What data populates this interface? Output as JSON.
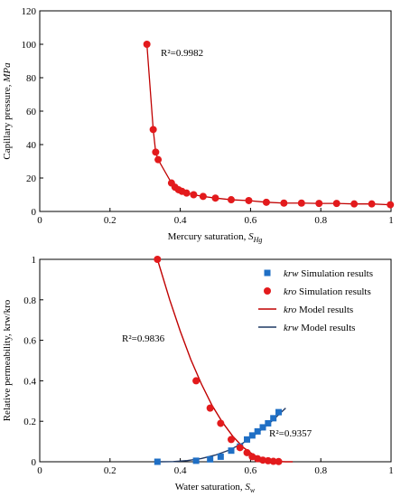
{
  "chart_data": [
    {
      "type": "scatter",
      "xlabel": "Mercury saturation, ",
      "xlabel_sym": "S",
      "xlabel_sub": "Hg",
      "ylabel": "Capillary pressure, ",
      "ylabel_unit": "MPa",
      "xlim": [
        0,
        1
      ],
      "ylim": [
        0,
        120
      ],
      "xticks": [
        "0",
        "0.2",
        "0.4",
        "0.6",
        "0.8",
        "1"
      ],
      "yticks": [
        "0",
        "20",
        "40",
        "60",
        "80",
        "100",
        "120"
      ],
      "xtick_values": [
        0,
        0.2,
        0.4,
        0.6,
        0.8,
        1
      ],
      "ytick_values": [
        0,
        20,
        40,
        60,
        80,
        100,
        120
      ],
      "annotation": "R²=0.9982",
      "marker_color": "#e31a1c",
      "line_color": "#c00000",
      "points": {
        "x": [
          0.305,
          0.323,
          0.33,
          0.337,
          0.375,
          0.385,
          0.395,
          0.405,
          0.418,
          0.438,
          0.465,
          0.5,
          0.545,
          0.595,
          0.645,
          0.695,
          0.745,
          0.795,
          0.845,
          0.895,
          0.945,
          0.998
        ],
        "y": [
          100,
          49,
          35.5,
          31,
          17,
          14.5,
          13,
          12,
          11,
          10,
          9,
          8,
          7,
          6.5,
          5.5,
          5,
          5,
          4.8,
          4.8,
          4.5,
          4.5,
          4
        ]
      }
    },
    {
      "type": "scatter",
      "xlabel": "Water saturation, ",
      "xlabel_sym": "S",
      "xlabel_sub": "w",
      "ylabel": "Relative permeability, krw/kro",
      "xlim": [
        0,
        1
      ],
      "ylim": [
        0,
        1
      ],
      "xticks": [
        "0",
        "0.2",
        "0.4",
        "0.6",
        "0.8",
        "1"
      ],
      "yticks": [
        "0",
        "0.2",
        "0.4",
        "0.6",
        "0.8",
        "1"
      ],
      "xtick_values": [
        0,
        0.2,
        0.4,
        0.6,
        0.8,
        1
      ],
      "ytick_values": [
        0,
        0.2,
        0.4,
        0.6,
        0.8,
        1
      ],
      "annotations": [
        "R²=0.9836",
        "R²=0.9357"
      ],
      "legend_placement": "top-right",
      "legend": [
        {
          "italic": "krw",
          "text": " Simulation results",
          "kind": "square",
          "color": "#1f6fc5"
        },
        {
          "italic": "kro",
          "text": " Simulation results",
          "kind": "circle",
          "color": "#e31a1c"
        },
        {
          "italic": "kro",
          "text": " Model results",
          "kind": "line",
          "color": "#c00000"
        },
        {
          "italic": "krw",
          "text": " Model results",
          "kind": "line",
          "color": "#1f3864"
        }
      ],
      "series": [
        {
          "name": "krw Simulation results",
          "marker": "square",
          "color": "#1f6fc5",
          "x": [
            0.335,
            0.445,
            0.485,
            0.515,
            0.545,
            0.57,
            0.59,
            0.605,
            0.62,
            0.635,
            0.65,
            0.665,
            0.68
          ],
          "y": [
            0,
            0.005,
            0.012,
            0.025,
            0.055,
            0.075,
            0.11,
            0.13,
            0.15,
            0.17,
            0.19,
            0.215,
            0.245
          ]
        },
        {
          "name": "kro Simulation results",
          "marker": "circle",
          "color": "#e31a1c",
          "x": [
            0.335,
            0.445,
            0.485,
            0.515,
            0.545,
            0.57,
            0.59,
            0.605,
            0.62,
            0.635,
            0.65,
            0.665,
            0.68
          ],
          "y": [
            1.0,
            0.4,
            0.265,
            0.19,
            0.11,
            0.07,
            0.045,
            0.025,
            0.015,
            0.008,
            0.005,
            0.002,
            0.001
          ]
        },
        {
          "name": "kro Model results",
          "kind": "line",
          "color": "#c00000",
          "x": [
            0.335,
            0.37,
            0.4,
            0.43,
            0.46,
            0.49,
            0.52,
            0.55,
            0.58,
            0.61,
            0.64,
            0.67,
            0.7,
            0.72
          ],
          "y": [
            1.0,
            0.8,
            0.645,
            0.505,
            0.385,
            0.28,
            0.195,
            0.125,
            0.07,
            0.032,
            0.01,
            0.002,
            0.0,
            0.0
          ]
        },
        {
          "name": "krw Model results",
          "kind": "line",
          "color": "#1f3864",
          "x": [
            0.335,
            0.38,
            0.42,
            0.46,
            0.5,
            0.54,
            0.58,
            0.62,
            0.66,
            0.7
          ],
          "y": [
            0.0,
            0.001,
            0.006,
            0.016,
            0.033,
            0.058,
            0.094,
            0.143,
            0.2,
            0.265
          ]
        }
      ]
    }
  ]
}
